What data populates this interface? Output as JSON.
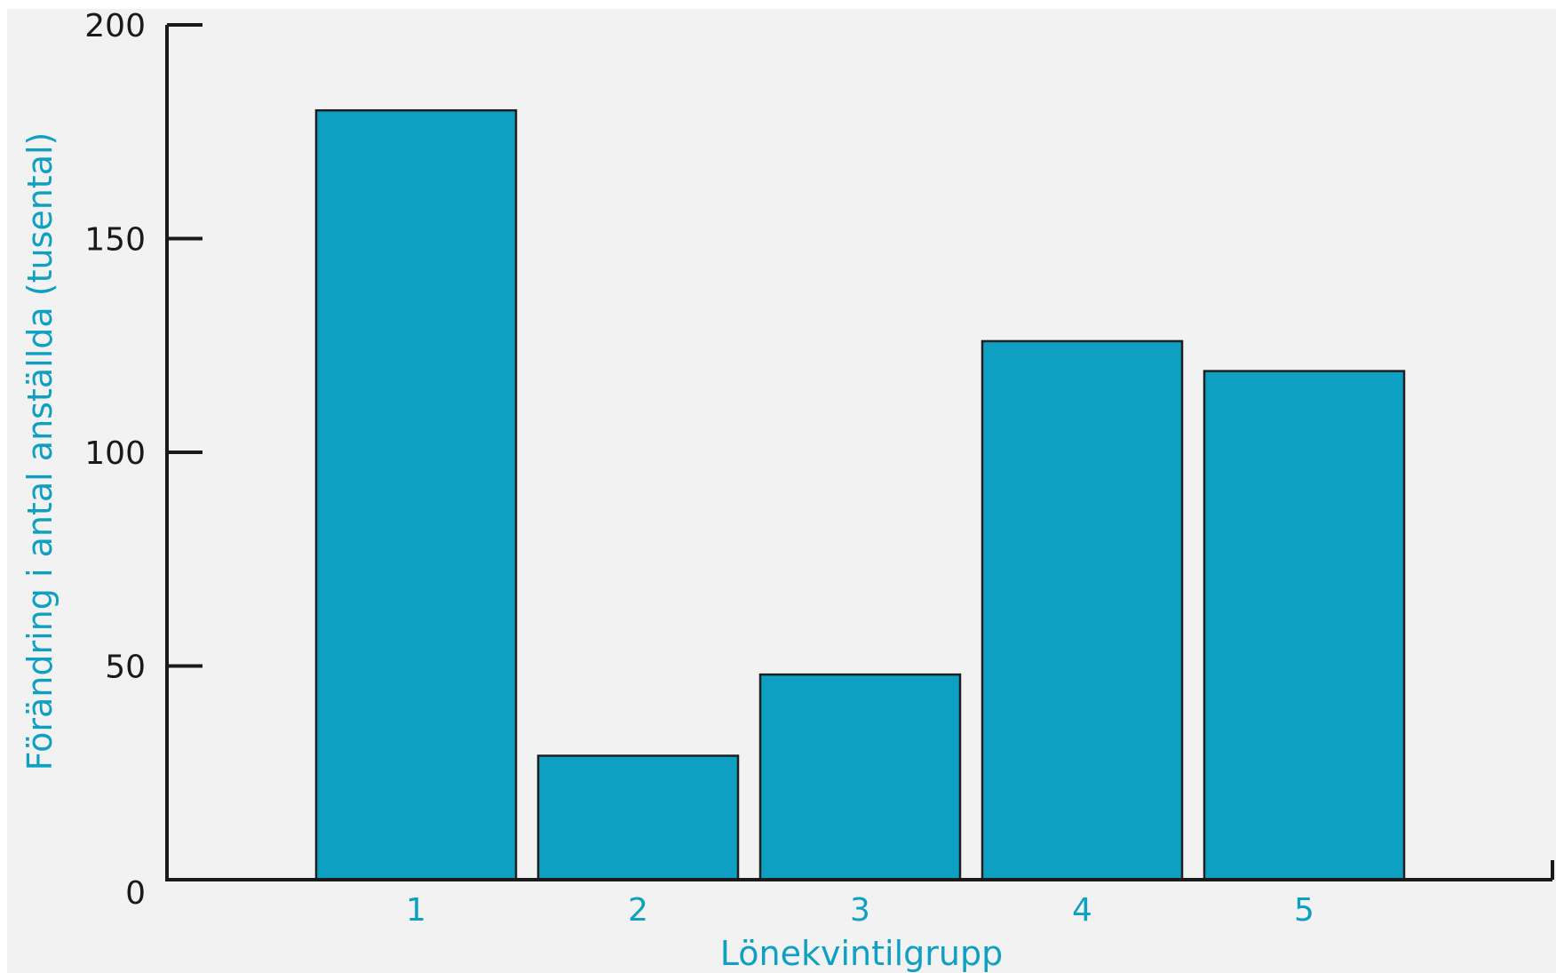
{
  "colors": {
    "background": "#f2f2f2",
    "bar_fill": "#0ea0c2",
    "bar_stroke": "#1f1f1f",
    "axis": "#1a1a1a",
    "accent_text": "#0ea0c2",
    "tick_text": "#1a1a1a"
  },
  "chart_data": {
    "type": "bar",
    "categories": [
      "1",
      "2",
      "3",
      "4",
      "5"
    ],
    "values": [
      180,
      29,
      48,
      126,
      119
    ],
    "title": "",
    "xlabel": "Lönekvintilgrupp",
    "ylabel": "Förändring i antal anställda (tusental)",
    "ylim": [
      0,
      200
    ],
    "yticks": [
      0,
      50,
      100,
      150,
      200
    ],
    "grid": false,
    "legend": "none"
  }
}
